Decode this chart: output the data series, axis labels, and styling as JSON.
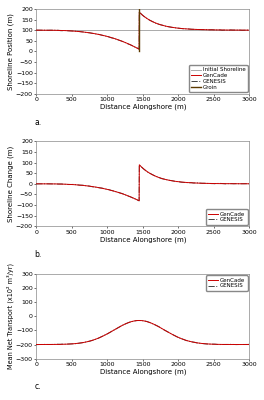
{
  "xlim": [
    0,
    3000
  ],
  "x_ticks": [
    0,
    500,
    1000,
    1500,
    2000,
    2500,
    3000
  ],
  "groin_x": 1450,
  "panel_a": {
    "ylabel": "Shoreline Position (m)",
    "ylim": [
      -200,
      200
    ],
    "y_ticks": [
      -200,
      -150,
      -100,
      -50,
      0,
      50,
      100,
      150,
      200
    ],
    "initial_y": 100,
    "label": "a."
  },
  "panel_b": {
    "ylabel": "Shoreline Change (m)",
    "ylim": [
      -200,
      200
    ],
    "y_ticks": [
      -200,
      -150,
      -100,
      -50,
      0,
      50,
      100,
      150,
      200
    ],
    "label": "b."
  },
  "panel_c": {
    "ylabel": "Mean Net Transport (x10² m³/yr)",
    "ylim": [
      -300,
      300
    ],
    "y_ticks": [
      -300,
      -200,
      -100,
      0,
      100,
      200,
      300
    ],
    "label": "c."
  },
  "color_gencade": "#cc0000",
  "color_genesis": "#444444",
  "color_initial": "#aaaaaa",
  "color_groin": "#5c3a00",
  "xlabel": "Distance Alongshore (m)"
}
